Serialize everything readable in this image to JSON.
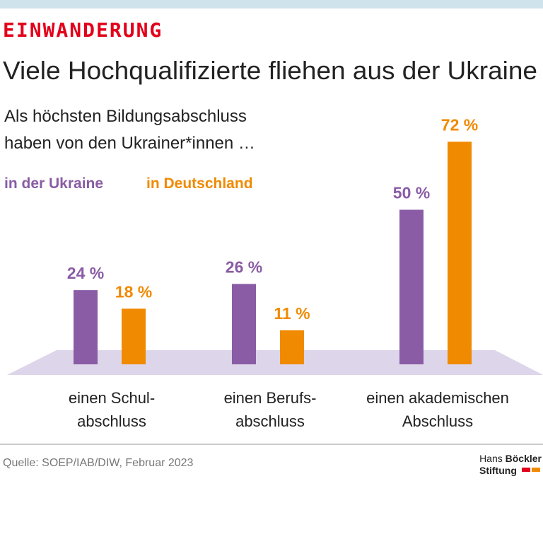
{
  "chart_data": {
    "type": "bar",
    "kicker": "EINWANDERUNG",
    "title": "Viele Hochqualifizierte fliehen aus der Ukraine",
    "subtitle": [
      "Als höchsten Bildungsabschluss",
      "haben von den Ukrainer*innen …"
    ],
    "categories": [
      "einen Schul-\nabschluss",
      "einen Berufs-\nabschluss",
      "einen akademischen\nAbschluss"
    ],
    "series": [
      {
        "name": "in der Ukraine",
        "color": "#8a5ca5",
        "values": [
          24,
          26,
          50
        ],
        "value_labels": [
          "24 %",
          "26 %",
          "50 %"
        ]
      },
      {
        "name": "in Deutschland",
        "color": "#f08a00",
        "values": [
          18,
          11,
          72
        ],
        "value_labels": [
          "18 %",
          "11 %",
          "72 %"
        ]
      }
    ],
    "source": "Quelle: SOEP/IAB/DIW, Februar 2023",
    "logo": {
      "first": "Hans",
      "second": "Böckler",
      "third": "Stiftung"
    }
  }
}
